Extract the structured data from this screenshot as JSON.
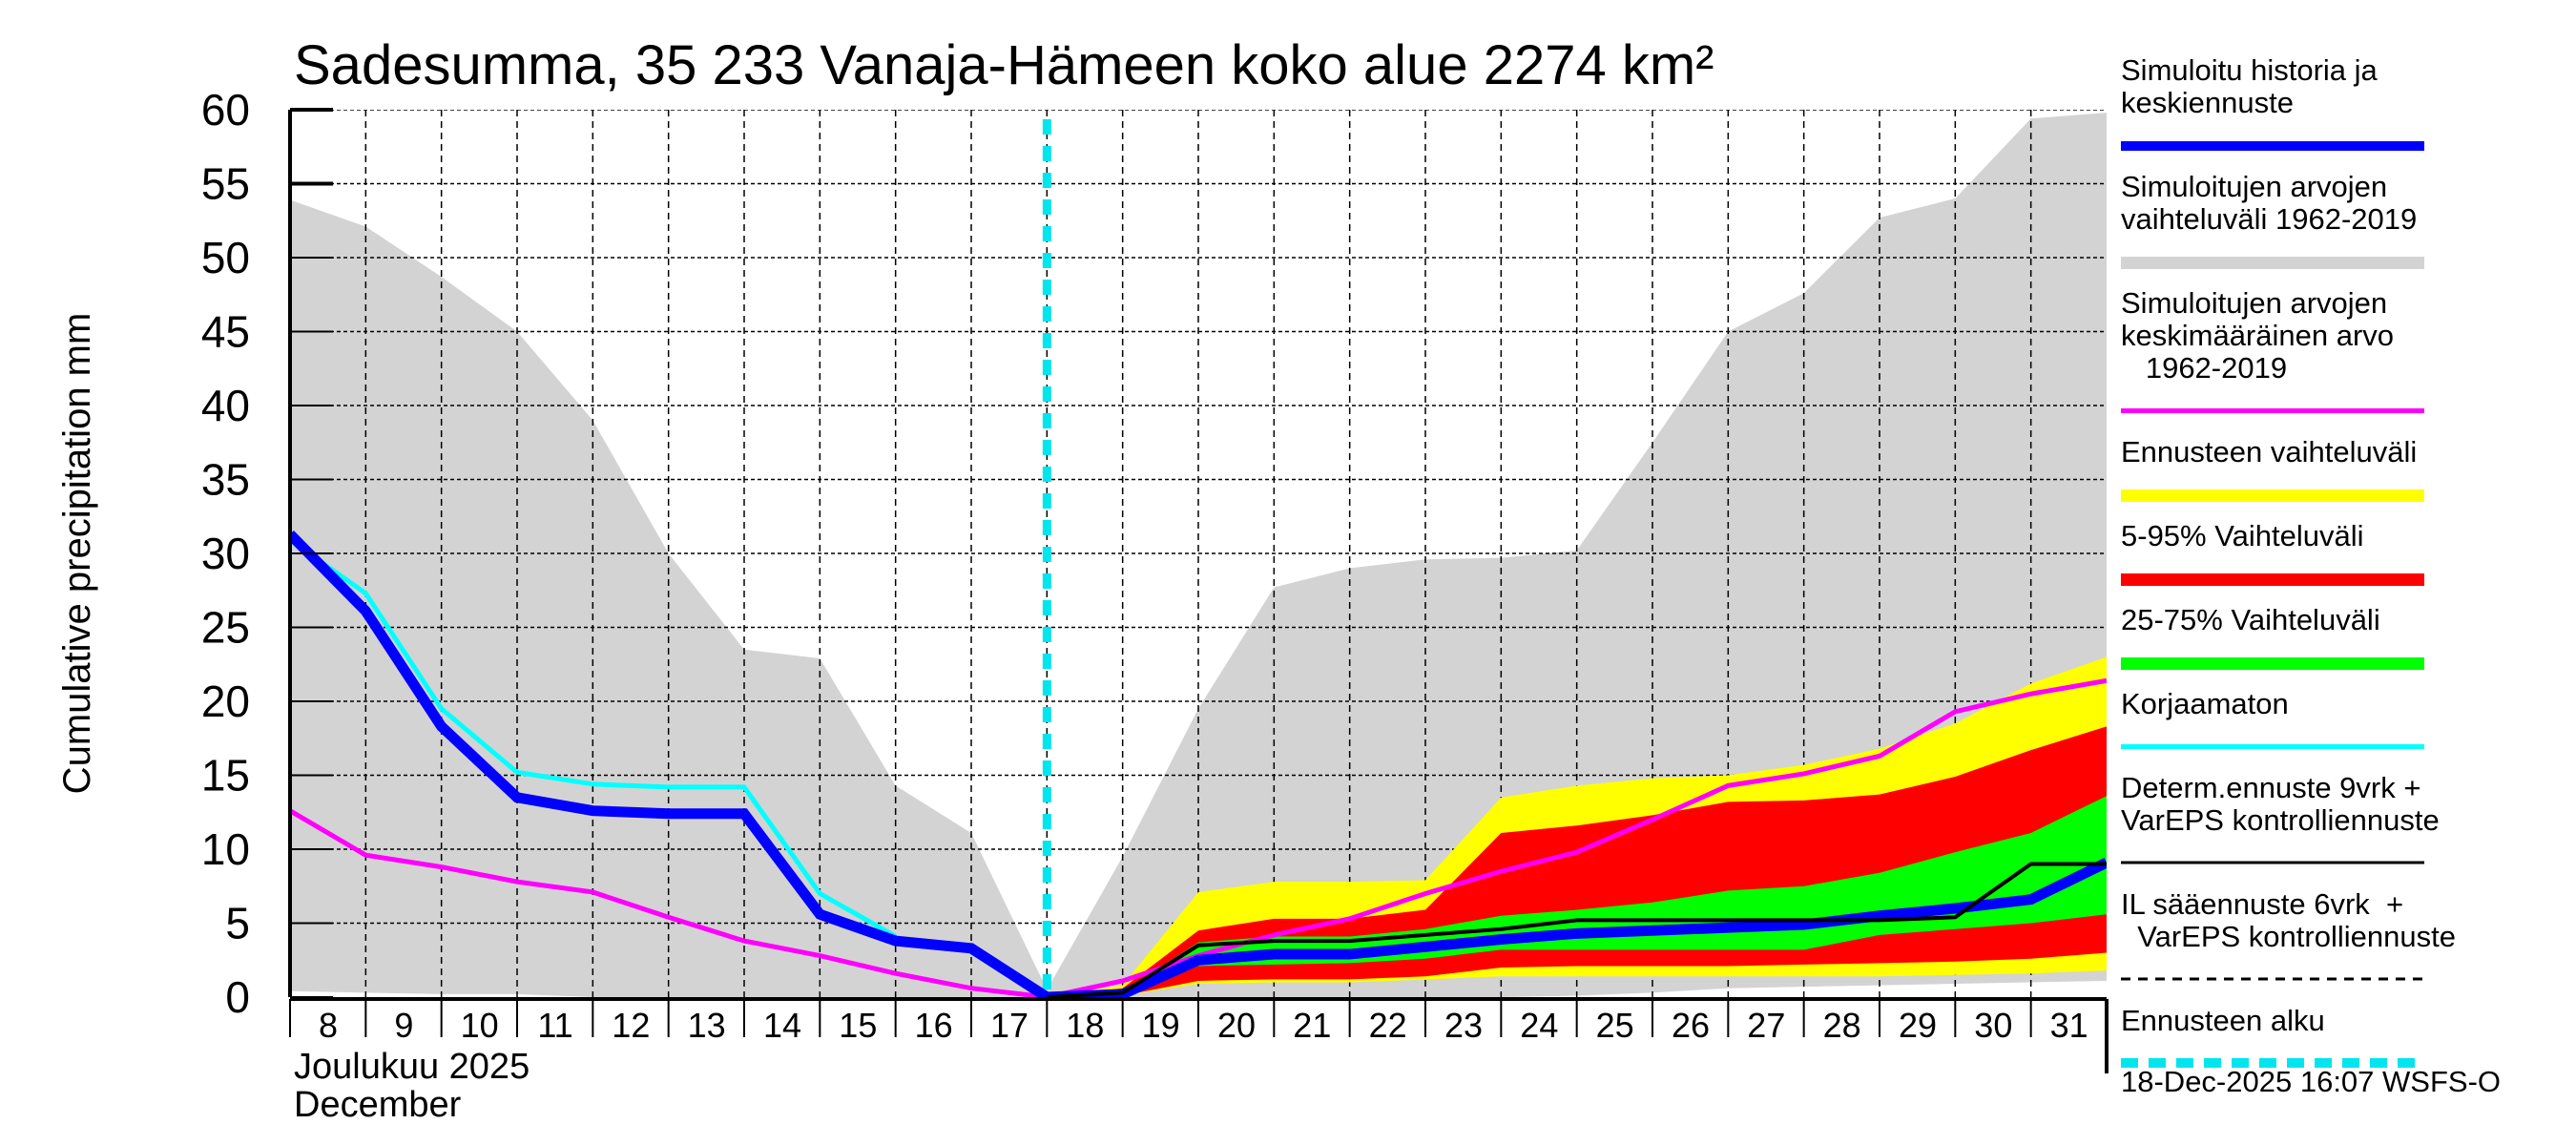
{
  "chart_data": {
    "type": "area",
    "title": "Sadesumma, 35 233 Vanaja-Hämeen koko alue 2274 km²",
    "ylabel": "Cumulative precipitation   mm",
    "xlabel_line1": "Joulukuu  2025",
    "xlabel_line2": "December",
    "ylim": [
      0,
      60
    ],
    "yticks": [
      0,
      5,
      10,
      15,
      20,
      25,
      30,
      35,
      40,
      45,
      50,
      55,
      60
    ],
    "xlim": [
      8,
      32
    ],
    "xticks": [
      "8",
      "9",
      "10",
      "11",
      "12",
      "13",
      "14",
      "15",
      "16",
      "17",
      "18",
      "19",
      "20",
      "21",
      "22",
      "23",
      "24",
      "25",
      "26",
      "27",
      "28",
      "29",
      "30",
      "31"
    ],
    "grid": true,
    "forecast_start_day": 18,
    "timestamp": "18-Dec-2025 16:07 WSFS-O",
    "colors": {
      "history_range": "#d3d3d3",
      "forecast_range": "#ffff00",
      "p5_95": "#ff0000",
      "p25_75": "#00ff00",
      "mean_history": "#ff00ff",
      "uncorrected": "#00ffff",
      "simulated": "#0000ff",
      "determ": "#000000",
      "forecast_start": "#00e5ee"
    },
    "history_range": {
      "x": [
        8,
        9,
        10,
        11,
        12,
        13,
        14,
        15,
        16,
        17,
        18,
        19,
        20,
        21,
        22,
        23,
        24,
        25,
        26,
        27,
        28,
        29,
        30,
        31,
        32
      ],
      "upper": [
        53.9,
        52.1,
        48.7,
        45.0,
        39.0,
        30.0,
        23.5,
        22.9,
        14.3,
        11.1,
        0.5,
        9.5,
        19.5,
        27.7,
        29.0,
        29.6,
        29.7,
        30.2,
        37.5,
        45.0,
        47.6,
        52.7,
        54.0,
        59.4,
        59.8
      ],
      "lower": [
        0.4,
        0.3,
        0.2,
        0.2,
        0.0,
        0.0,
        0.0,
        0.0,
        0.0,
        0.0,
        0.0,
        0.0,
        0.0,
        0.0,
        0.0,
        0.0,
        0.0,
        0.1,
        0.3,
        0.6,
        0.7,
        0.8,
        0.9,
        1.0,
        1.1
      ]
    },
    "forecast_bands": {
      "x": [
        18,
        19,
        20,
        21,
        22,
        23,
        24,
        25,
        26,
        27,
        28,
        29,
        30,
        31,
        32
      ],
      "yellow_upper": [
        0,
        0.8,
        7.1,
        7.8,
        7.8,
        7.9,
        13.5,
        14.3,
        14.8,
        15.0,
        15.7,
        16.8,
        18.5,
        21.2,
        23.0
      ],
      "red_upper": [
        0,
        0.6,
        4.5,
        5.3,
        5.3,
        5.9,
        11.1,
        11.6,
        12.3,
        13.2,
        13.3,
        13.7,
        14.9,
        16.7,
        18.3
      ],
      "green_upper": [
        0,
        0.4,
        3.7,
        4.1,
        4.1,
        4.6,
        5.5,
        5.9,
        6.4,
        7.2,
        7.5,
        8.4,
        9.8,
        11.1,
        13.6
      ],
      "green_lower": [
        0,
        0.2,
        2.1,
        2.2,
        2.3,
        2.6,
        3.2,
        3.2,
        3.2,
        3.2,
        3.2,
        4.2,
        4.6,
        5.0,
        5.6
      ],
      "red_lower": [
        0,
        0.1,
        1.1,
        1.2,
        1.2,
        1.4,
        2.0,
        2.1,
        2.1,
        2.1,
        2.2,
        2.3,
        2.4,
        2.6,
        3.0
      ],
      "yellow_lower": [
        0,
        0.1,
        0.9,
        1.0,
        1.0,
        1.2,
        1.4,
        1.4,
        1.4,
        1.4,
        1.4,
        1.4,
        1.5,
        1.6,
        1.8
      ]
    },
    "series": [
      {
        "name": "Simuloitu historia ja keskiennuste",
        "key": "simulated",
        "x": [
          8,
          9,
          10,
          11,
          12,
          13,
          14,
          15,
          16,
          17,
          18,
          19,
          20,
          21,
          22,
          23,
          24,
          25,
          26,
          27,
          28,
          29,
          30,
          31,
          32
        ],
        "values": [
          31.3,
          26.1,
          18.3,
          13.5,
          12.6,
          12.4,
          12.4,
          5.6,
          3.8,
          3.3,
          0.0,
          0.2,
          2.5,
          2.9,
          2.9,
          3.4,
          3.9,
          4.3,
          4.5,
          4.7,
          4.9,
          5.5,
          6.0,
          6.6,
          9.1
        ]
      },
      {
        "name": "Simuloitujen arvojen keskimääräinen arvo 1962-2019",
        "key": "mean_history",
        "x": [
          8,
          9,
          10,
          11,
          12,
          13,
          14,
          15,
          16,
          17,
          18,
          19,
          20,
          21,
          22,
          23,
          24,
          25,
          26,
          27,
          28,
          29,
          30,
          31,
          32
        ],
        "values": [
          12.6,
          9.6,
          8.8,
          7.8,
          7.1,
          5.4,
          3.8,
          2.8,
          1.6,
          0.6,
          0.0,
          1.1,
          2.8,
          4.2,
          5.3,
          7.0,
          8.5,
          9.8,
          12.0,
          14.3,
          15.1,
          16.3,
          19.3,
          20.5,
          21.4
        ]
      },
      {
        "name": "Korjaamaton",
        "key": "uncorrected",
        "x": [
          8,
          9,
          10,
          11,
          12,
          13,
          14,
          15,
          16
        ],
        "values": [
          30.9,
          27.3,
          19.5,
          15.2,
          14.4,
          14.2,
          14.2,
          7.0,
          4.1
        ]
      },
      {
        "name": "Determ.ennuste 9vrk + VarEPS kontrolliennuste",
        "key": "determ",
        "x": [
          18,
          19,
          20,
          21,
          22,
          23,
          24,
          25,
          26,
          27,
          28,
          29,
          30,
          31,
          32
        ],
        "values": [
          0.0,
          0.3,
          3.5,
          3.8,
          3.8,
          4.2,
          4.6,
          5.2,
          5.2,
          5.2,
          5.2,
          5.2,
          5.4,
          9.0,
          9.0
        ]
      }
    ],
    "legend_position": "right",
    "legend": [
      {
        "label_lines": [
          "Simuloitu historia ja",
          "keskiennuste"
        ],
        "style": "thick",
        "color": "#0000ff"
      },
      {
        "label_lines": [
          "Simuloitujen arvojen",
          "vaihteluväli 1962-2019"
        ],
        "style": "band",
        "color": "#d3d3d3"
      },
      {
        "label_lines": [
          "Simuloitujen arvojen",
          "keskimääräinen arvo",
          "   1962-2019"
        ],
        "style": "line",
        "color": "#ff00ff"
      },
      {
        "label_lines": [
          "Ennusteen vaihteluväli"
        ],
        "style": "band",
        "color": "#ffff00"
      },
      {
        "label_lines": [
          "5-95% Vaihteluväli"
        ],
        "style": "band",
        "color": "#ff0000"
      },
      {
        "label_lines": [
          "25-75% Vaihteluväli"
        ],
        "style": "band",
        "color": "#00ff00"
      },
      {
        "label_lines": [
          "Korjaamaton"
        ],
        "style": "line",
        "color": "#00ffff"
      },
      {
        "label_lines": [
          "Determ.ennuste 9vrk +",
          "VarEPS kontrolliennuste"
        ],
        "style": "thin",
        "color": "#000000"
      },
      {
        "label_lines": [
          "IL sääennuste 6vrk  +",
          "  VarEPS kontrolliennuste"
        ],
        "style": "dashed",
        "color": "#000000"
      },
      {
        "label_lines": [
          "Ennusteen alku"
        ],
        "style": "cyan-dashed",
        "color": "#00e5ee"
      }
    ]
  }
}
